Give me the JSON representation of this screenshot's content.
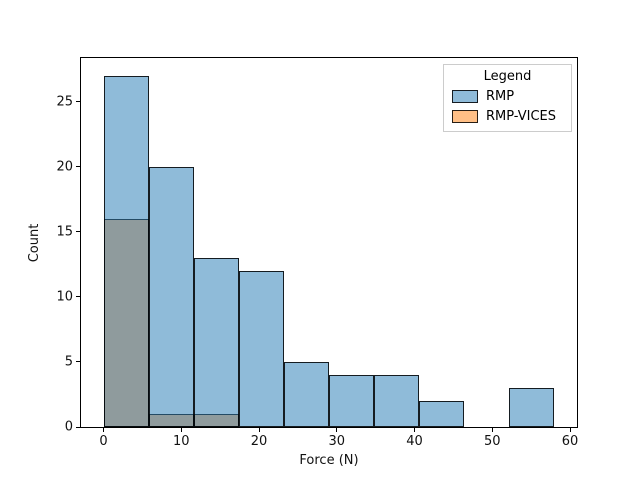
{
  "figure": {
    "background_color": "#ffffff",
    "text_color": "#111111",
    "spine_color": "#000000"
  },
  "chart_data": {
    "type": "bar",
    "subtype": "histogram",
    "title": "",
    "xlabel": "Force (N)",
    "ylabel": "Count",
    "bin_edges": [
      0,
      5.8,
      11.6,
      17.4,
      23.2,
      29.0,
      34.8,
      40.6,
      46.4,
      52.2,
      58.0
    ],
    "series": [
      {
        "name": "RMP",
        "values": [
          27,
          20,
          13,
          12,
          5,
          4,
          4,
          2,
          0,
          3
        ],
        "fill": "rgba(31,119,180,0.5)",
        "edge": "rgba(0,0,0,0.85)",
        "layer": 2
      },
      {
        "name": "RMP-VICES",
        "values": [
          16,
          1,
          1,
          0,
          0,
          0,
          0,
          0,
          0,
          0
        ],
        "fill": "rgba(255,127,14,0.5)",
        "edge": "rgba(0,0,0,0.85)",
        "layer": 1
      }
    ],
    "xlim": [
      -2.9,
      60.9
    ],
    "ylim": [
      0,
      28.35
    ],
    "x_ticks": [
      0,
      10,
      20,
      30,
      40,
      50,
      60
    ],
    "y_ticks": [
      0,
      5,
      10,
      15,
      20,
      25
    ],
    "grid": false,
    "legend": {
      "title": "Legend",
      "position": "upper right"
    }
  }
}
